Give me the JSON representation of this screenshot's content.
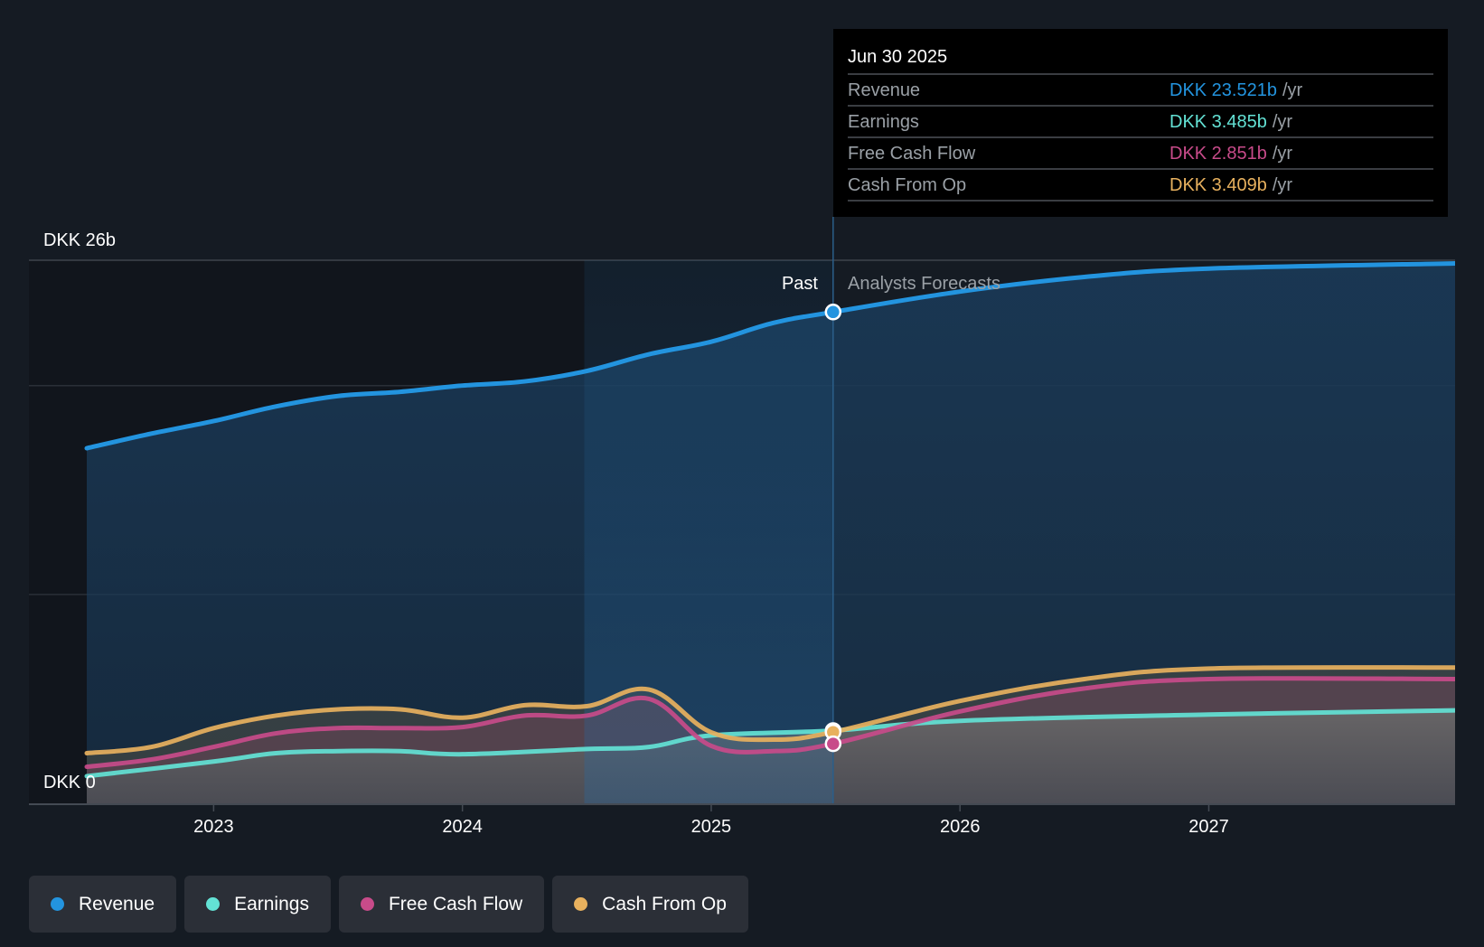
{
  "tooltip": {
    "date": "Jun 30 2025",
    "rows": [
      {
        "name": "Revenue",
        "value": "DKK 23.521b",
        "unit": "/yr",
        "color": "#2394df"
      },
      {
        "name": "Earnings",
        "value": "DKK 3.485b",
        "unit": "/yr",
        "color": "#63e2d5"
      },
      {
        "name": "Free Cash Flow",
        "value": "DKK 2.851b",
        "unit": "/yr",
        "color": "#c84b8a"
      },
      {
        "name": "Cash From Op",
        "value": "DKK 3.409b",
        "unit": "/yr",
        "color": "#e8b15e"
      }
    ]
  },
  "regions": {
    "past_label": "Past",
    "forecast_label": "Analysts Forecasts"
  },
  "legend": [
    {
      "label": "Revenue",
      "color": "#2394df"
    },
    {
      "label": "Earnings",
      "color": "#63e2d5"
    },
    {
      "label": "Free Cash Flow",
      "color": "#c84b8a"
    },
    {
      "label": "Cash From Op",
      "color": "#e8b15e"
    }
  ],
  "chart_data": {
    "type": "area",
    "title": "",
    "xlabel": "",
    "ylabel": "",
    "y_unit": "DKK billions",
    "ylim": [
      0,
      26
    ],
    "xlim": [
      2022.49,
      2027.99
    ],
    "y_tick_labels": [
      {
        "value": 26,
        "label": "DKK 26b"
      },
      {
        "value": 0,
        "label": "DKK 0"
      }
    ],
    "y_gridlines": [
      0,
      10,
      20,
      26
    ],
    "x_ticks": [
      {
        "value": 2023,
        "label": "2023"
      },
      {
        "value": 2024,
        "label": "2024"
      },
      {
        "value": 2025,
        "label": "2025"
      },
      {
        "value": 2026,
        "label": "2026"
      },
      {
        "value": 2027,
        "label": "2027"
      }
    ],
    "past_highlight_start": 2024.49,
    "forecast_start": 2025.49,
    "legend_position": "bottom-left",
    "series": [
      {
        "name": "Revenue",
        "color": "#2394df",
        "x": [
          2022.49,
          2022.75,
          2023.0,
          2023.25,
          2023.5,
          2023.75,
          2024.0,
          2024.25,
          2024.5,
          2024.75,
          2025.0,
          2025.25,
          2025.49,
          2026.0,
          2026.5,
          2027.0,
          2027.99
        ],
        "values": [
          17.0,
          17.7,
          18.3,
          19.0,
          19.5,
          19.7,
          20.0,
          20.2,
          20.7,
          21.5,
          22.1,
          23.0,
          23.521,
          24.5,
          25.2,
          25.6,
          25.85
        ]
      },
      {
        "name": "Earnings",
        "color": "#63e2d5",
        "x": [
          2022.49,
          2023.0,
          2023.25,
          2023.5,
          2023.75,
          2024.0,
          2024.5,
          2024.75,
          2025.0,
          2025.49,
          2026.0,
          2027.0,
          2027.99
        ],
        "values": [
          1.3,
          2.0,
          2.4,
          2.5,
          2.5,
          2.35,
          2.6,
          2.7,
          3.25,
          3.485,
          3.95,
          4.25,
          4.45
        ]
      },
      {
        "name": "Free Cash Flow",
        "color": "#c84b8a",
        "x": [
          2022.49,
          2022.75,
          2023.0,
          2023.25,
          2023.5,
          2023.75,
          2024.0,
          2024.25,
          2024.5,
          2024.75,
          2025.0,
          2025.25,
          2025.49,
          2026.0,
          2026.5,
          2027.0,
          2027.99
        ],
        "values": [
          1.75,
          2.1,
          2.7,
          3.35,
          3.6,
          3.6,
          3.65,
          4.2,
          4.2,
          5.0,
          2.75,
          2.5,
          2.851,
          4.4,
          5.5,
          5.95,
          5.95
        ]
      },
      {
        "name": "Cash From Op",
        "color": "#e8b15e",
        "x": [
          2022.49,
          2022.75,
          2023.0,
          2023.25,
          2023.5,
          2023.75,
          2024.0,
          2024.25,
          2024.5,
          2024.75,
          2025.0,
          2025.25,
          2025.49,
          2026.0,
          2026.5,
          2027.0,
          2027.99
        ],
        "values": [
          2.4,
          2.7,
          3.6,
          4.2,
          4.5,
          4.5,
          4.1,
          4.7,
          4.65,
          5.45,
          3.4,
          3.05,
          3.409,
          4.9,
          5.95,
          6.45,
          6.5
        ]
      }
    ]
  }
}
